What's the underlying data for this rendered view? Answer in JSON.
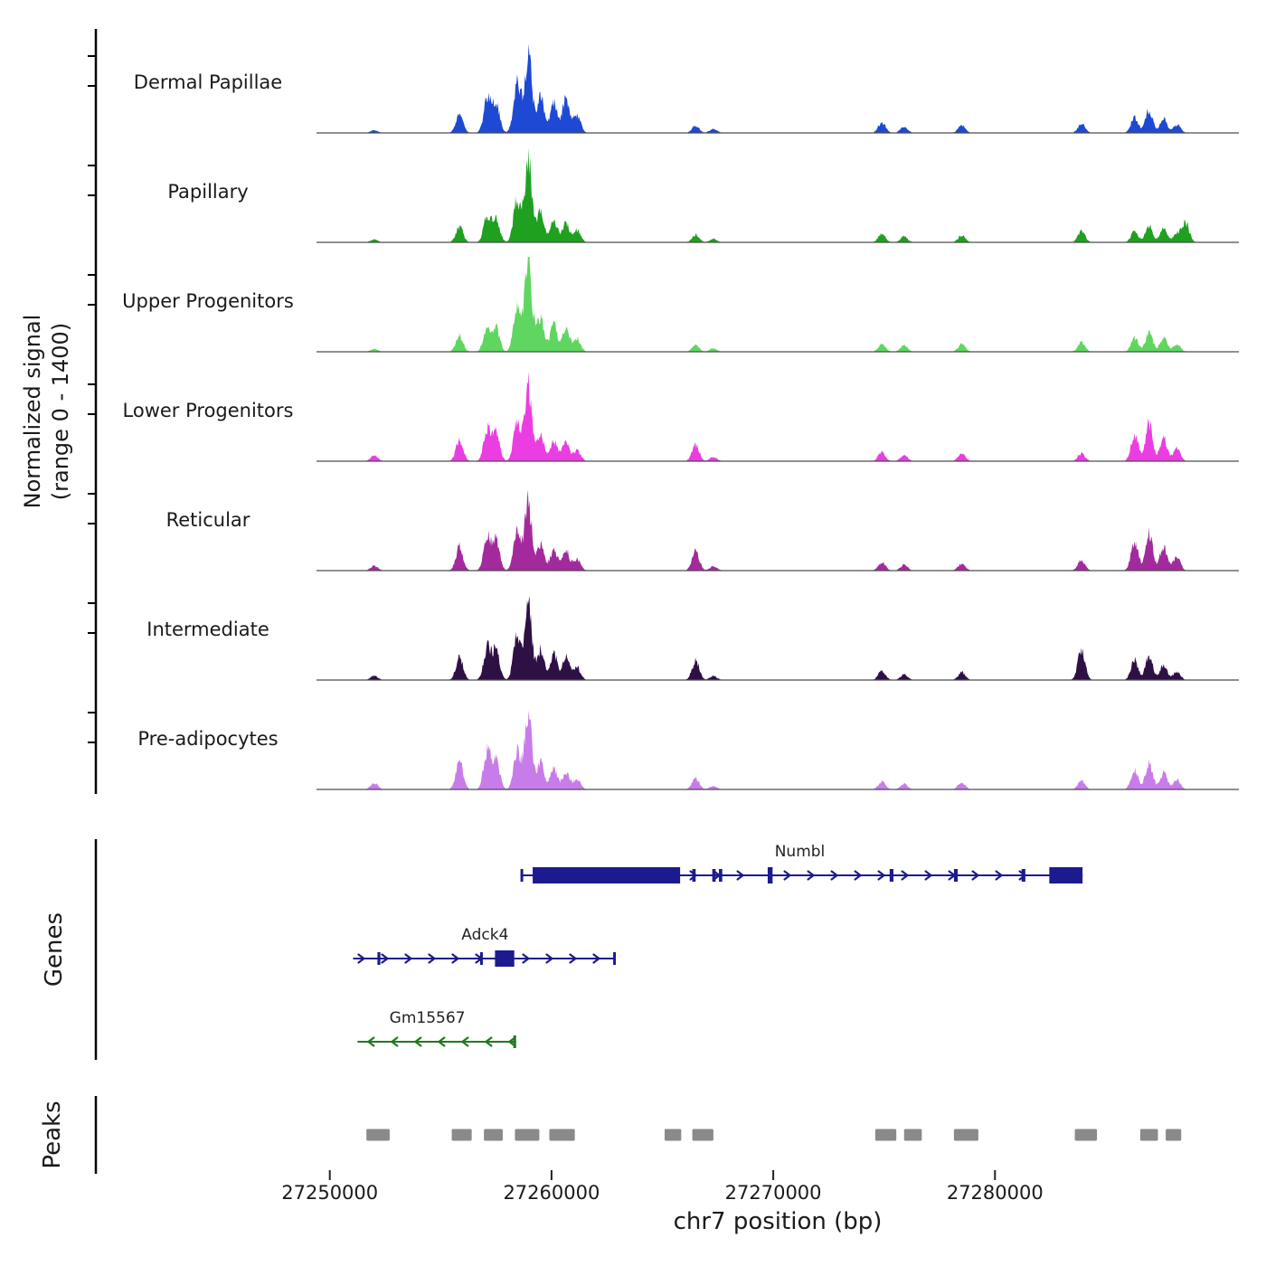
{
  "figure": {
    "y_axis_label_line1": "Normalized signal",
    "y_axis_label_line2": "(range 0 - 1400)",
    "genes_section_label": "Genes",
    "peaks_section_label": "Peaks"
  },
  "x_axis": {
    "label": "chr7 position (bp)",
    "ticks": [
      "27250000",
      "27260000",
      "27270000",
      "27280000"
    ],
    "tick_positions_bp": [
      27250000,
      27260000,
      27270000,
      27280000
    ],
    "domain": [
      27249400,
      27291000
    ]
  },
  "chart_data": {
    "type": "area",
    "title": "",
    "ylabel": "Normalized signal (range 0 - 1400)",
    "xlabel": "chr7 position (bp)",
    "value_range": [
      0,
      1400
    ],
    "x_domain": [
      27249400,
      27291000
    ],
    "tracks": [
      {
        "name": "Dermal Papillae",
        "color": "#1d49d4",
        "peaks": [
          [
            27252000,
            40
          ],
          [
            27255850,
            260
          ],
          [
            27257100,
            480
          ],
          [
            27257500,
            420
          ],
          [
            27258450,
            760
          ],
          [
            27258950,
            1150
          ],
          [
            27259500,
            520
          ],
          [
            27260100,
            430
          ],
          [
            27260650,
            480
          ],
          [
            27261150,
            250
          ],
          [
            27266500,
            100
          ],
          [
            27267300,
            60
          ],
          [
            27274900,
            150
          ],
          [
            27275900,
            90
          ],
          [
            27278500,
            110
          ],
          [
            27283900,
            130
          ],
          [
            27286300,
            230
          ],
          [
            27286950,
            330
          ],
          [
            27287600,
            210
          ],
          [
            27288200,
            120
          ]
        ]
      },
      {
        "name": "Papillary",
        "color": "#1fa01f",
        "peaks": [
          [
            27252000,
            40
          ],
          [
            27255850,
            220
          ],
          [
            27257100,
            380
          ],
          [
            27257500,
            340
          ],
          [
            27258450,
            600
          ],
          [
            27258950,
            1180
          ],
          [
            27259500,
            430
          ],
          [
            27260100,
            300
          ],
          [
            27260650,
            280
          ],
          [
            27261150,
            170
          ],
          [
            27266500,
            110
          ],
          [
            27267300,
            50
          ],
          [
            27274900,
            120
          ],
          [
            27275900,
            80
          ],
          [
            27278500,
            100
          ],
          [
            27283900,
            160
          ],
          [
            27286300,
            160
          ],
          [
            27286950,
            240
          ],
          [
            27287600,
            200
          ],
          [
            27288200,
            130
          ],
          [
            27288600,
            280
          ]
        ]
      },
      {
        "name": "Upper Progenitors",
        "color": "#5fd65f",
        "peaks": [
          [
            27252000,
            40
          ],
          [
            27255850,
            240
          ],
          [
            27257100,
            360
          ],
          [
            27257500,
            330
          ],
          [
            27258450,
            660
          ],
          [
            27258950,
            1330
          ],
          [
            27259500,
            500
          ],
          [
            27260100,
            380
          ],
          [
            27260650,
            330
          ],
          [
            27261150,
            190
          ],
          [
            27266500,
            90
          ],
          [
            27267300,
            50
          ],
          [
            27274900,
            110
          ],
          [
            27275900,
            90
          ],
          [
            27278500,
            110
          ],
          [
            27283900,
            140
          ],
          [
            27286300,
            200
          ],
          [
            27286950,
            280
          ],
          [
            27287600,
            190
          ],
          [
            27288200,
            110
          ]
        ]
      },
      {
        "name": "Lower Progenitors",
        "color": "#ea3de2",
        "peaks": [
          [
            27252000,
            80
          ],
          [
            27255850,
            300
          ],
          [
            27257100,
            440
          ],
          [
            27257500,
            380
          ],
          [
            27258450,
            540
          ],
          [
            27258950,
            1080
          ],
          [
            27259500,
            380
          ],
          [
            27260100,
            290
          ],
          [
            27260650,
            270
          ],
          [
            27261150,
            150
          ],
          [
            27266500,
            230
          ],
          [
            27267300,
            60
          ],
          [
            27274900,
            130
          ],
          [
            27275900,
            90
          ],
          [
            27278500,
            110
          ],
          [
            27283900,
            110
          ],
          [
            27286300,
            380
          ],
          [
            27286950,
            520
          ],
          [
            27287600,
            330
          ],
          [
            27288200,
            180
          ]
        ]
      },
      {
        "name": "Reticular",
        "color": "#a32a9d",
        "peaks": [
          [
            27252000,
            70
          ],
          [
            27255850,
            340
          ],
          [
            27257100,
            480
          ],
          [
            27257500,
            420
          ],
          [
            27258450,
            560
          ],
          [
            27258950,
            980
          ],
          [
            27259500,
            380
          ],
          [
            27260100,
            300
          ],
          [
            27260650,
            290
          ],
          [
            27261150,
            160
          ],
          [
            27266500,
            290
          ],
          [
            27267300,
            60
          ],
          [
            27274900,
            120
          ],
          [
            27275900,
            80
          ],
          [
            27278500,
            100
          ],
          [
            27283900,
            150
          ],
          [
            27286300,
            420
          ],
          [
            27286950,
            560
          ],
          [
            27287600,
            350
          ],
          [
            27288200,
            190
          ]
        ]
      },
      {
        "name": "Intermediate",
        "color": "#2e1045",
        "peaks": [
          [
            27252000,
            60
          ],
          [
            27255850,
            320
          ],
          [
            27257100,
            460
          ],
          [
            27257500,
            420
          ],
          [
            27258450,
            680
          ],
          [
            27258950,
            1050
          ],
          [
            27259500,
            430
          ],
          [
            27260100,
            380
          ],
          [
            27260650,
            330
          ],
          [
            27261150,
            180
          ],
          [
            27266500,
            280
          ],
          [
            27267300,
            60
          ],
          [
            27274900,
            130
          ],
          [
            27275900,
            80
          ],
          [
            27278500,
            110
          ],
          [
            27283900,
            430
          ],
          [
            27286300,
            280
          ],
          [
            27286950,
            340
          ],
          [
            27287600,
            220
          ],
          [
            27288200,
            120
          ]
        ]
      },
      {
        "name": "Pre-adipocytes",
        "color": "#c87ce9",
        "peaks": [
          [
            27252000,
            90
          ],
          [
            27255850,
            400
          ],
          [
            27257100,
            560
          ],
          [
            27257500,
            430
          ],
          [
            27258450,
            540
          ],
          [
            27258950,
            1090
          ],
          [
            27259500,
            380
          ],
          [
            27260100,
            290
          ],
          [
            27260650,
            250
          ],
          [
            27261150,
            140
          ],
          [
            27266500,
            160
          ],
          [
            27267300,
            50
          ],
          [
            27274900,
            110
          ],
          [
            27275900,
            80
          ],
          [
            27278500,
            100
          ],
          [
            27283900,
            120
          ],
          [
            27286300,
            280
          ],
          [
            27286950,
            380
          ],
          [
            27287600,
            240
          ],
          [
            27288200,
            140
          ]
        ]
      }
    ],
    "genes": [
      {
        "name": "Numbl",
        "strand": "+",
        "start": 27258600,
        "end": 27283950,
        "color": "#1b1b8f",
        "label_bp": 27271200,
        "exons": [
          [
            27258600,
            27258720,
            "thin"
          ],
          [
            27259150,
            27265800,
            "thick"
          ],
          [
            27266350,
            27266500,
            "thin"
          ],
          [
            27267250,
            27267400,
            "thin"
          ],
          [
            27267550,
            27267700,
            "thin"
          ],
          [
            27269750,
            27269970,
            "thick"
          ],
          [
            27275250,
            27275420,
            "thin"
          ],
          [
            27278150,
            27278320,
            "thin"
          ],
          [
            27281200,
            27281370,
            "thin"
          ],
          [
            27282450,
            27283950,
            "thick"
          ]
        ]
      },
      {
        "name": "Adck4",
        "strand": "+",
        "start": 27251050,
        "end": 27262900,
        "color": "#1b1b8f",
        "label_bp": 27257000,
        "exons": [
          [
            27252150,
            27252280,
            "thin"
          ],
          [
            27256780,
            27256900,
            "thin"
          ],
          [
            27257450,
            27258320,
            "thick"
          ],
          [
            27262780,
            27262900,
            "thin"
          ]
        ]
      },
      {
        "name": "Gm15567",
        "strand": "-",
        "start": 27251250,
        "end": 27258400,
        "color": "#1f7a1f",
        "label_bp": 27254400,
        "exons": [
          [
            27258280,
            27258400,
            "thin"
          ]
        ]
      }
    ],
    "peaks_track": {
      "color": "#8a8a8a",
      "regions": [
        [
          27251650,
          27252700
        ],
        [
          27255500,
          27256400
        ],
        [
          27256950,
          27257800
        ],
        [
          27258350,
          27259450
        ],
        [
          27259900,
          27261050
        ],
        [
          27265100,
          27265850
        ],
        [
          27266350,
          27267300
        ],
        [
          27274600,
          27275550
        ],
        [
          27275900,
          27276700
        ],
        [
          27278150,
          27279250
        ],
        [
          27283600,
          27284600
        ],
        [
          27286550,
          27287350
        ],
        [
          27287700,
          27288400
        ]
      ]
    }
  }
}
